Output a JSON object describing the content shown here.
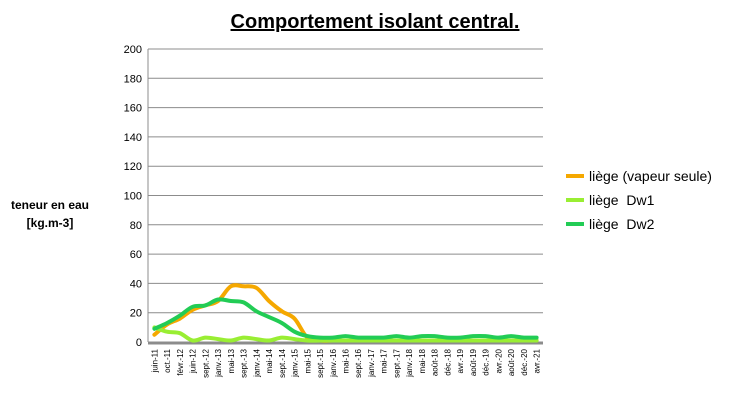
{
  "chart_data": {
    "type": "line",
    "title": "Comportement isolant central.",
    "ylabel_lines": [
      "teneur en eau",
      "[kg.m-3]"
    ],
    "ylim": [
      0,
      200
    ],
    "yticks": [
      0,
      20,
      40,
      60,
      80,
      100,
      120,
      140,
      160,
      180,
      200
    ],
    "grid": true,
    "legend_position": "right",
    "x": [
      "juin-11",
      "oct.-11",
      "févr.-12",
      "juin-12",
      "sept.-12",
      "janv.-13",
      "mai-13",
      "sept.-13",
      "janv.-14",
      "mai-14",
      "sept.-14",
      "janv.-15",
      "mai-15",
      "sept.-15",
      "janv.-16",
      "mai-16",
      "sept.-16",
      "janv.-17",
      "mai-17",
      "sept.-17",
      "janv.-18",
      "mai-18",
      "août-18",
      "déc.-18",
      "avr.-19",
      "août-19",
      "déc.-19",
      "avr.-20",
      "août-20",
      "déc.-20",
      "avr.-21"
    ],
    "series": [
      {
        "name": "liège (vapeur seule)",
        "color": "#f5a800",
        "values": [
          5,
          12,
          16,
          22,
          25,
          28,
          38,
          38,
          37,
          28,
          21,
          16,
          3,
          1,
          1,
          1,
          1,
          1,
          1,
          1,
          1,
          1,
          1,
          1,
          1,
          1,
          1,
          1,
          1,
          1,
          1
        ]
      },
      {
        "name": "liège  Dw1",
        "color": "#99ee33",
        "values": [
          10,
          7,
          6,
          1,
          3,
          2,
          1,
          3,
          2,
          1,
          3,
          2,
          1,
          1,
          1,
          1,
          1,
          1,
          1,
          1,
          1,
          1,
          1,
          1,
          1,
          1,
          1,
          1,
          1,
          1,
          1
        ]
      },
      {
        "name": "liège  Dw2",
        "color": "#22cc55",
        "values": [
          9,
          13,
          18,
          24,
          25,
          29,
          28,
          27,
          21,
          17,
          13,
          7,
          4,
          3,
          3,
          4,
          3,
          3,
          3,
          4,
          3,
          4,
          4,
          3,
          3,
          4,
          4,
          3,
          4,
          3,
          3
        ]
      }
    ]
  }
}
